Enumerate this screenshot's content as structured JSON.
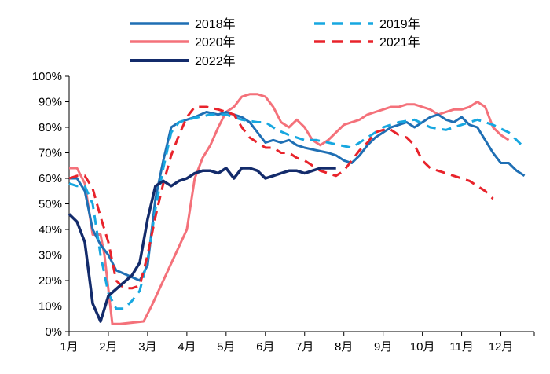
{
  "chart_data": {
    "type": "line",
    "title": "",
    "xlabel": "",
    "ylabel": "",
    "ylim": [
      0,
      100
    ],
    "x_range": [
      1,
      12.85
    ],
    "yticks": [
      0,
      10,
      20,
      30,
      40,
      50,
      60,
      70,
      80,
      90,
      100
    ],
    "ytick_labels": [
      "0%",
      "10%",
      "20%",
      "30%",
      "40%",
      "50%",
      "60%",
      "70%",
      "80%",
      "90%",
      "100%"
    ],
    "xticks": [
      1,
      2,
      3,
      4,
      5,
      6,
      7,
      8,
      9,
      10,
      11,
      12
    ],
    "xtick_labels": [
      "1月",
      "2月",
      "3月",
      "4月",
      "5月",
      "6月",
      "7月",
      "8月",
      "9月",
      "10月",
      "11月",
      "12月"
    ],
    "legend_position": "top",
    "series": [
      {
        "name": "2018年",
        "color": "#1f6fb4",
        "dash": "solid",
        "points": [
          [
            1,
            60
          ],
          [
            1.2,
            60
          ],
          [
            1.4,
            55
          ],
          [
            1.6,
            40
          ],
          [
            1.8,
            34
          ],
          [
            2.0,
            30
          ],
          [
            2.2,
            24
          ],
          [
            2.5,
            22
          ],
          [
            2.8,
            20
          ],
          [
            3.0,
            26
          ],
          [
            3.2,
            52
          ],
          [
            3.4,
            67
          ],
          [
            3.6,
            80
          ],
          [
            3.8,
            82
          ],
          [
            4.0,
            83
          ],
          [
            4.2,
            84
          ],
          [
            4.5,
            86
          ],
          [
            4.8,
            85
          ],
          [
            5.0,
            86
          ],
          [
            5.2,
            85
          ],
          [
            5.4,
            84
          ],
          [
            5.6,
            82
          ],
          [
            5.8,
            78
          ],
          [
            6.0,
            74
          ],
          [
            6.2,
            75
          ],
          [
            6.4,
            74
          ],
          [
            6.6,
            75
          ],
          [
            6.8,
            73
          ],
          [
            7.0,
            72
          ],
          [
            7.3,
            71
          ],
          [
            7.6,
            70
          ],
          [
            7.8,
            69
          ],
          [
            8.0,
            67
          ],
          [
            8.2,
            66
          ],
          [
            8.4,
            69
          ],
          [
            8.6,
            73
          ],
          [
            8.8,
            76
          ],
          [
            9.0,
            78
          ],
          [
            9.2,
            80
          ],
          [
            9.4,
            81
          ],
          [
            9.6,
            82
          ],
          [
            9.8,
            80
          ],
          [
            10.0,
            82
          ],
          [
            10.2,
            84
          ],
          [
            10.4,
            85
          ],
          [
            10.6,
            83
          ],
          [
            10.8,
            82
          ],
          [
            11.0,
            84
          ],
          [
            11.2,
            81
          ],
          [
            11.4,
            80
          ],
          [
            11.6,
            75
          ],
          [
            11.8,
            70
          ],
          [
            12.0,
            66
          ],
          [
            12.2,
            66
          ],
          [
            12.4,
            63
          ],
          [
            12.6,
            61
          ]
        ]
      },
      {
        "name": "2019年",
        "color": "#17a7e0",
        "dash": "dashed",
        "points": [
          [
            1,
            58
          ],
          [
            1.2,
            57
          ],
          [
            1.4,
            57
          ],
          [
            1.6,
            50
          ],
          [
            1.8,
            30
          ],
          [
            2.0,
            15
          ],
          [
            2.2,
            9
          ],
          [
            2.4,
            9
          ],
          [
            2.6,
            12
          ],
          [
            2.8,
            16
          ],
          [
            3.0,
            28
          ],
          [
            3.2,
            48
          ],
          [
            3.4,
            64
          ],
          [
            3.6,
            78
          ],
          [
            3.8,
            82
          ],
          [
            4.0,
            83
          ],
          [
            4.3,
            84
          ],
          [
            4.6,
            85
          ],
          [
            5.0,
            85
          ],
          [
            5.4,
            83
          ],
          [
            5.8,
            82
          ],
          [
            6.0,
            82
          ],
          [
            6.3,
            79
          ],
          [
            6.6,
            77
          ],
          [
            7.0,
            75
          ],
          [
            7.3,
            75
          ],
          [
            7.6,
            74
          ],
          [
            7.9,
            73
          ],
          [
            8.2,
            72
          ],
          [
            8.6,
            76
          ],
          [
            9.0,
            80
          ],
          [
            9.4,
            82
          ],
          [
            9.8,
            83
          ],
          [
            10.2,
            80
          ],
          [
            10.6,
            79
          ],
          [
            11.0,
            81
          ],
          [
            11.4,
            83
          ],
          [
            11.8,
            81
          ],
          [
            12.2,
            78
          ],
          [
            12.6,
            72
          ]
        ]
      },
      {
        "name": "2020年",
        "color": "#f4717a",
        "dash": "solid",
        "points": [
          [
            1,
            64
          ],
          [
            1.2,
            64
          ],
          [
            1.4,
            58
          ],
          [
            1.6,
            38
          ],
          [
            1.8,
            38
          ],
          [
            1.9,
            30
          ],
          [
            2.1,
            3
          ],
          [
            2.3,
            3
          ],
          [
            2.6,
            3.5
          ],
          [
            2.9,
            4
          ],
          [
            3.1,
            10
          ],
          [
            3.4,
            20
          ],
          [
            3.7,
            30
          ],
          [
            4.0,
            40
          ],
          [
            4.2,
            60
          ],
          [
            4.4,
            68
          ],
          [
            4.6,
            73
          ],
          [
            4.8,
            80
          ],
          [
            5.0,
            86
          ],
          [
            5.2,
            88
          ],
          [
            5.4,
            92
          ],
          [
            5.6,
            93
          ],
          [
            5.8,
            93
          ],
          [
            6.0,
            92
          ],
          [
            6.2,
            88
          ],
          [
            6.4,
            82
          ],
          [
            6.6,
            80
          ],
          [
            6.8,
            83
          ],
          [
            7.0,
            80
          ],
          [
            7.2,
            75
          ],
          [
            7.4,
            73
          ],
          [
            7.6,
            75
          ],
          [
            7.8,
            78
          ],
          [
            8.0,
            81
          ],
          [
            8.2,
            82
          ],
          [
            8.4,
            83
          ],
          [
            8.6,
            85
          ],
          [
            8.8,
            86
          ],
          [
            9.0,
            87
          ],
          [
            9.2,
            88
          ],
          [
            9.4,
            88
          ],
          [
            9.6,
            89
          ],
          [
            9.8,
            89
          ],
          [
            10.0,
            88
          ],
          [
            10.2,
            87
          ],
          [
            10.4,
            85
          ],
          [
            10.6,
            86
          ],
          [
            10.8,
            87
          ],
          [
            11.0,
            87
          ],
          [
            11.2,
            88
          ],
          [
            11.4,
            90
          ],
          [
            11.6,
            88
          ],
          [
            11.8,
            80
          ],
          [
            12.0,
            77
          ],
          [
            12.2,
            75
          ]
        ]
      },
      {
        "name": "2021年",
        "color": "#e8232b",
        "dash": "dashed",
        "points": [
          [
            1,
            60
          ],
          [
            1.2,
            61
          ],
          [
            1.4,
            61
          ],
          [
            1.6,
            56
          ],
          [
            1.8,
            45
          ],
          [
            2.0,
            35
          ],
          [
            2.2,
            20
          ],
          [
            2.4,
            17
          ],
          [
            2.6,
            17
          ],
          [
            2.8,
            18
          ],
          [
            3.0,
            30
          ],
          [
            3.2,
            45
          ],
          [
            3.4,
            58
          ],
          [
            3.6,
            69
          ],
          [
            3.8,
            77
          ],
          [
            4.0,
            84
          ],
          [
            4.2,
            88
          ],
          [
            4.5,
            88
          ],
          [
            4.8,
            87
          ],
          [
            5.0,
            86
          ],
          [
            5.2,
            85
          ],
          [
            5.4,
            80
          ],
          [
            5.6,
            76
          ],
          [
            5.8,
            74
          ],
          [
            6.0,
            72
          ],
          [
            6.2,
            72
          ],
          [
            6.4,
            70
          ],
          [
            6.6,
            70
          ],
          [
            6.8,
            68
          ],
          [
            7.0,
            67
          ],
          [
            7.2,
            65
          ],
          [
            7.4,
            63
          ],
          [
            7.6,
            62
          ],
          [
            7.8,
            61
          ],
          [
            8.0,
            63
          ],
          [
            8.2,
            67
          ],
          [
            8.4,
            71
          ],
          [
            8.6,
            74
          ],
          [
            8.8,
            78
          ],
          [
            9.0,
            79
          ],
          [
            9.2,
            79
          ],
          [
            9.4,
            77
          ],
          [
            9.6,
            76
          ],
          [
            9.8,
            73
          ],
          [
            10.0,
            67
          ],
          [
            10.2,
            64
          ],
          [
            10.4,
            63
          ],
          [
            10.6,
            62
          ],
          [
            10.8,
            61
          ],
          [
            11.0,
            60
          ],
          [
            11.2,
            59
          ],
          [
            11.4,
            57
          ],
          [
            11.6,
            55
          ],
          [
            11.8,
            52
          ]
        ]
      },
      {
        "name": "2022年",
        "color": "#132b6b",
        "dash": "solid",
        "points": [
          [
            1,
            46
          ],
          [
            1.2,
            43
          ],
          [
            1.4,
            35
          ],
          [
            1.6,
            11
          ],
          [
            1.8,
            4
          ],
          [
            2.0,
            14
          ],
          [
            2.3,
            18
          ],
          [
            2.6,
            22
          ],
          [
            2.8,
            27
          ],
          [
            3.0,
            44
          ],
          [
            3.2,
            57
          ],
          [
            3.4,
            59
          ],
          [
            3.6,
            57
          ],
          [
            3.8,
            59
          ],
          [
            4.0,
            60
          ],
          [
            4.2,
            62
          ],
          [
            4.4,
            63
          ],
          [
            4.6,
            63
          ],
          [
            4.8,
            62
          ],
          [
            5.0,
            64
          ],
          [
            5.2,
            60
          ],
          [
            5.4,
            64
          ],
          [
            5.6,
            64
          ],
          [
            5.8,
            63
          ],
          [
            6.0,
            60
          ],
          [
            6.2,
            61
          ],
          [
            6.4,
            62
          ],
          [
            6.6,
            63
          ],
          [
            6.8,
            63
          ],
          [
            7.0,
            62
          ],
          [
            7.2,
            63
          ],
          [
            7.4,
            64
          ],
          [
            7.6,
            64
          ],
          [
            7.8,
            64
          ]
        ]
      }
    ]
  }
}
